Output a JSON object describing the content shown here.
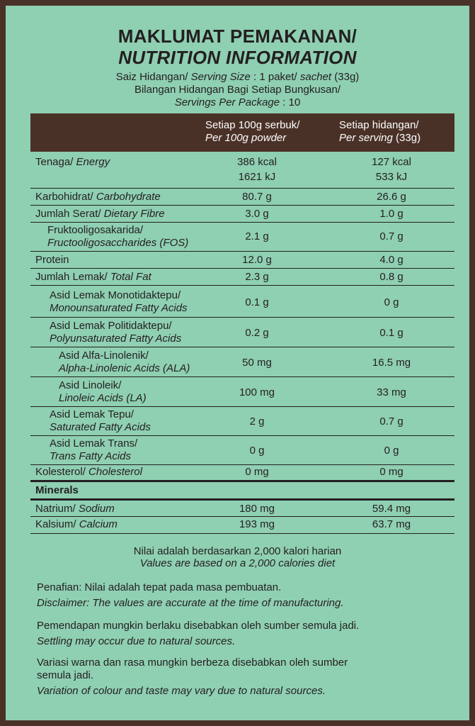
{
  "title": {
    "line1": "MAKLUMAT PEMAKANAN/",
    "line2": "NUTRITION INFORMATION"
  },
  "serving": {
    "size_label_ms": "Saiz Hidangan/ ",
    "size_label_en": "Serving Size",
    "size_value_ms": " : 1 paket/ ",
    "size_value_en": "sachet",
    "size_value_g": " (33g)",
    "per_package_ms": "Bilangan Hidangan Bagi Setiap Bungkusan/",
    "per_package_en": "Servings Per Package",
    "per_package_value": " : 10"
  },
  "header": {
    "col1_ms": "Setiap 100g serbuk/",
    "col1_en": "Per 100g powder",
    "col2_ms": "Setiap hidangan/",
    "col2_en": "Per serving",
    "col2_g": " (33g)"
  },
  "rows": {
    "energy": {
      "ms": "Tenaga/ ",
      "en": "Energy",
      "v1a": "386 kcal",
      "v1b": "1621 kJ",
      "v2a": "127 kcal",
      "v2b": "533 kJ"
    },
    "carb": {
      "ms": "Karbohidrat/ ",
      "en": "Carbohydrate",
      "v1": "80.7 g",
      "v2": "26.6 g"
    },
    "fibre": {
      "ms": "Jumlah Serat/ ",
      "en": "Dietary Fibre",
      "v1": "3.0 g",
      "v2": "1.0 g"
    },
    "fos": {
      "ms": "Fruktooligosakarida/",
      "en": "Fructooligosaccharides (FOS)",
      "v1": "2.1 g",
      "v2": "0.7 g"
    },
    "protein": {
      "ms": "Protein",
      "v1": "12.0 g",
      "v2": "4.0 g"
    },
    "fat": {
      "ms": "Jumlah Lemak/ ",
      "en": "Total Fat",
      "v1": "2.3 g",
      "v2": "0.8 g"
    },
    "mufa": {
      "ms": "Asid Lemak Monotidaktepu/",
      "en": "Monounsaturated Fatty Acids",
      "v1": "0.1 g",
      "v2": "0 g"
    },
    "pufa": {
      "ms": "Asid Lemak Politidaktepu/",
      "en": "Polyunsaturated Fatty Acids",
      "v1": "0.2 g",
      "v2": "0.1 g"
    },
    "ala": {
      "ms": "Asid Alfa-Linolenik/",
      "en": "Alpha-Linolenic Acids (ALA)",
      "v1": "50 mg",
      "v2": "16.5 mg"
    },
    "la": {
      "ms": "Asid Linoleik/",
      "en": "Linoleic Acids (LA)",
      "v1": "100 mg",
      "v2": "33 mg"
    },
    "sfa": {
      "ms": "Asid Lemak Tepu/",
      "en": "Saturated Fatty Acids",
      "v1": "2 g",
      "v2": "0.7 g"
    },
    "trans": {
      "ms": "Asid Lemak Trans/",
      "en": "Trans Fatty Acids",
      "v1": "0 g",
      "v2": "0 g"
    },
    "chol": {
      "ms": "Kolesterol/ ",
      "en": "Cholesterol",
      "v1": "0 mg",
      "v2": "0 mg"
    },
    "minerals": {
      "label": "Minerals"
    },
    "sodium": {
      "ms": "Natrium/ ",
      "en": "Sodium",
      "v1": "180 mg",
      "v2": "59.4 mg"
    },
    "calcium": {
      "ms": "Kalsium/ ",
      "en": "Calcium",
      "v1": "193 mg",
      "v2": "63.7 mg"
    }
  },
  "footer": {
    "diet_ms": "Nilai adalah berdasarkan 2,000 kalori harian",
    "diet_en": "Values are based on a 2,000 calories diet",
    "disclaimer_ms": "Penafian: Nilai adalah tepat pada masa pembuatan.",
    "disclaimer_en": "Disclaimer: The values are accurate at the time of manufacturing.",
    "settling_ms": "Pemendapan mungkin berlaku disebabkan oleh sumber semula jadi.",
    "settling_en": "Settling may occur due to natural sources.",
    "variation_ms_1": "Variasi warna dan rasa mungkin berbeza disebabkan oleh sumber",
    "variation_ms_2": "semula jadi.",
    "variation_en": "Variation of colour and taste may vary due to natural sources."
  }
}
